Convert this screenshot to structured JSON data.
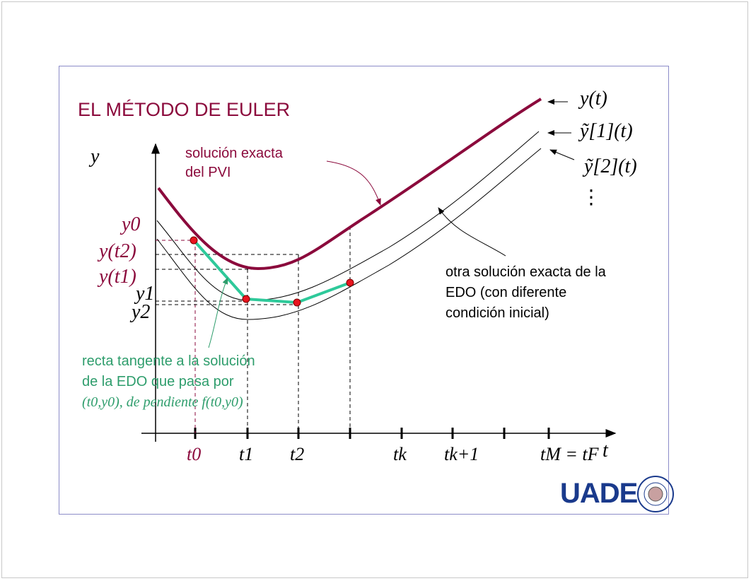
{
  "title": "EL MÉTODO DE EULER",
  "annotations": {
    "exact_pvi": [
      "solución exacta",
      "del PVI"
    ],
    "other_solution": [
      "otra solución exacta de la",
      "EDO (con diferente",
      "condición inicial)"
    ],
    "tangent": [
      "recta tangente a la solución",
      "de la EDO que pasa por",
      "(t0,y0),  de pendiente f(t0,y0)"
    ]
  },
  "axes": {
    "y_label": "y",
    "t_label": "t"
  },
  "curve_labels": {
    "exact": "y(t)",
    "approx1": "ỹ[1](t)",
    "approx2": "ỹ[2](t)",
    "more": "⋮"
  },
  "y_ticks": {
    "y0": "y0",
    "y_t2": "y(t2)",
    "y_t1": "y(t1)",
    "y1": "y1",
    "y2": "y2"
  },
  "t_ticks": [
    "t0",
    "t1",
    "t2",
    "tk",
    "tk+1",
    "tM = tF"
  ],
  "logo": "UADE",
  "colors": {
    "exact": "#8b0a3c",
    "tangent": "#2ec99a",
    "points": "#e8141e",
    "logo": "#1a3a8c",
    "frame": "#8c8cc8"
  }
}
